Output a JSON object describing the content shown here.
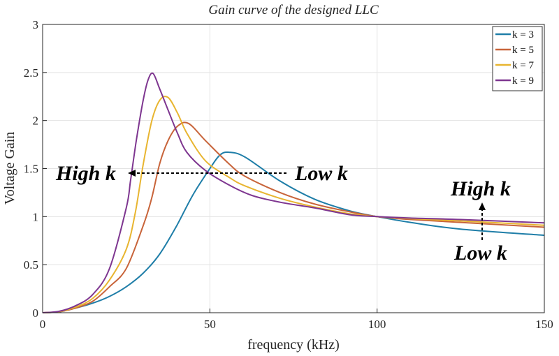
{
  "chart_data": {
    "type": "line",
    "title": "Gain curve of the designed LLC",
    "xlabel": "frequency (kHz)",
    "ylabel": "Voltage Gain",
    "xlim": [
      0,
      150
    ],
    "ylim": [
      0,
      3
    ],
    "xticks": [
      "0",
      "50",
      "100",
      "150"
    ],
    "yticks": [
      "0",
      "0.5",
      "1",
      "1.5",
      "2",
      "2.5",
      "3"
    ],
    "grid": true,
    "legend_position": "top-right",
    "series": [
      {
        "name": "k = 3",
        "color": "#1f7ea8",
        "x": [
          0,
          5,
          10,
          15,
          20,
          25,
          30,
          35,
          40,
          45,
          50,
          53,
          55.7,
          60.5,
          71,
          81.4,
          91.8,
          100,
          110,
          125,
          150
        ],
        "y": [
          0,
          0.01,
          0.05,
          0.1,
          0.17,
          0.27,
          0.41,
          0.61,
          0.9,
          1.23,
          1.5,
          1.64,
          1.67,
          1.62,
          1.37,
          1.18,
          1.06,
          1,
          0.94,
          0.87,
          0.806
        ]
      },
      {
        "name": "k = 5",
        "color": "#c8643a",
        "x": [
          0,
          5,
          10,
          15,
          20,
          25,
          30,
          32.6,
          35,
          37.5,
          40.3,
          43.6,
          48.7,
          55.7,
          60.5,
          71,
          81.4,
          91.8,
          100,
          110,
          125,
          150
        ],
        "y": [
          0,
          0.01,
          0.05,
          0.12,
          0.27,
          0.46,
          0.9,
          1.19,
          1.55,
          1.79,
          1.94,
          1.97,
          1.79,
          1.55,
          1.42,
          1.25,
          1.13,
          1.05,
          1,
          0.97,
          0.94,
          0.89
        ]
      },
      {
        "name": "k = 7",
        "color": "#e8b530",
        "x": [
          0,
          5,
          10,
          15,
          20,
          25,
          27.7,
          30,
          32.6,
          35,
          37.5,
          40.3,
          43.1,
          48.7,
          55.7,
          60.5,
          71,
          81.4,
          91.8,
          100,
          110,
          125,
          150
        ],
        "y": [
          0,
          0.012,
          0.06,
          0.15,
          0.34,
          0.66,
          1.04,
          1.53,
          1.99,
          2.21,
          2.24,
          2.08,
          1.87,
          1.58,
          1.41,
          1.32,
          1.19,
          1.1,
          1.03,
          1,
          0.98,
          0.955,
          0.91
        ]
      },
      {
        "name": "k = 9",
        "color": "#7e3690",
        "x": [
          0,
          5,
          10,
          15,
          20,
          25,
          26.3,
          28,
          30,
          31.5,
          33,
          35,
          37.5,
          40.3,
          43.1,
          48.7,
          55.7,
          62.6,
          71,
          81.4,
          91.8,
          100,
          110,
          125,
          150
        ],
        "y": [
          0,
          0.015,
          0.075,
          0.19,
          0.46,
          1.09,
          1.38,
          1.79,
          2.2,
          2.42,
          2.49,
          2.33,
          2.11,
          1.87,
          1.67,
          1.48,
          1.33,
          1.22,
          1.15,
          1.09,
          1.02,
          1,
          0.985,
          0.97,
          0.935
        ]
      }
    ],
    "annotations": {
      "left_high": "High k",
      "left_low": "Low k",
      "right_high": "High k",
      "right_low": "Low k"
    }
  }
}
